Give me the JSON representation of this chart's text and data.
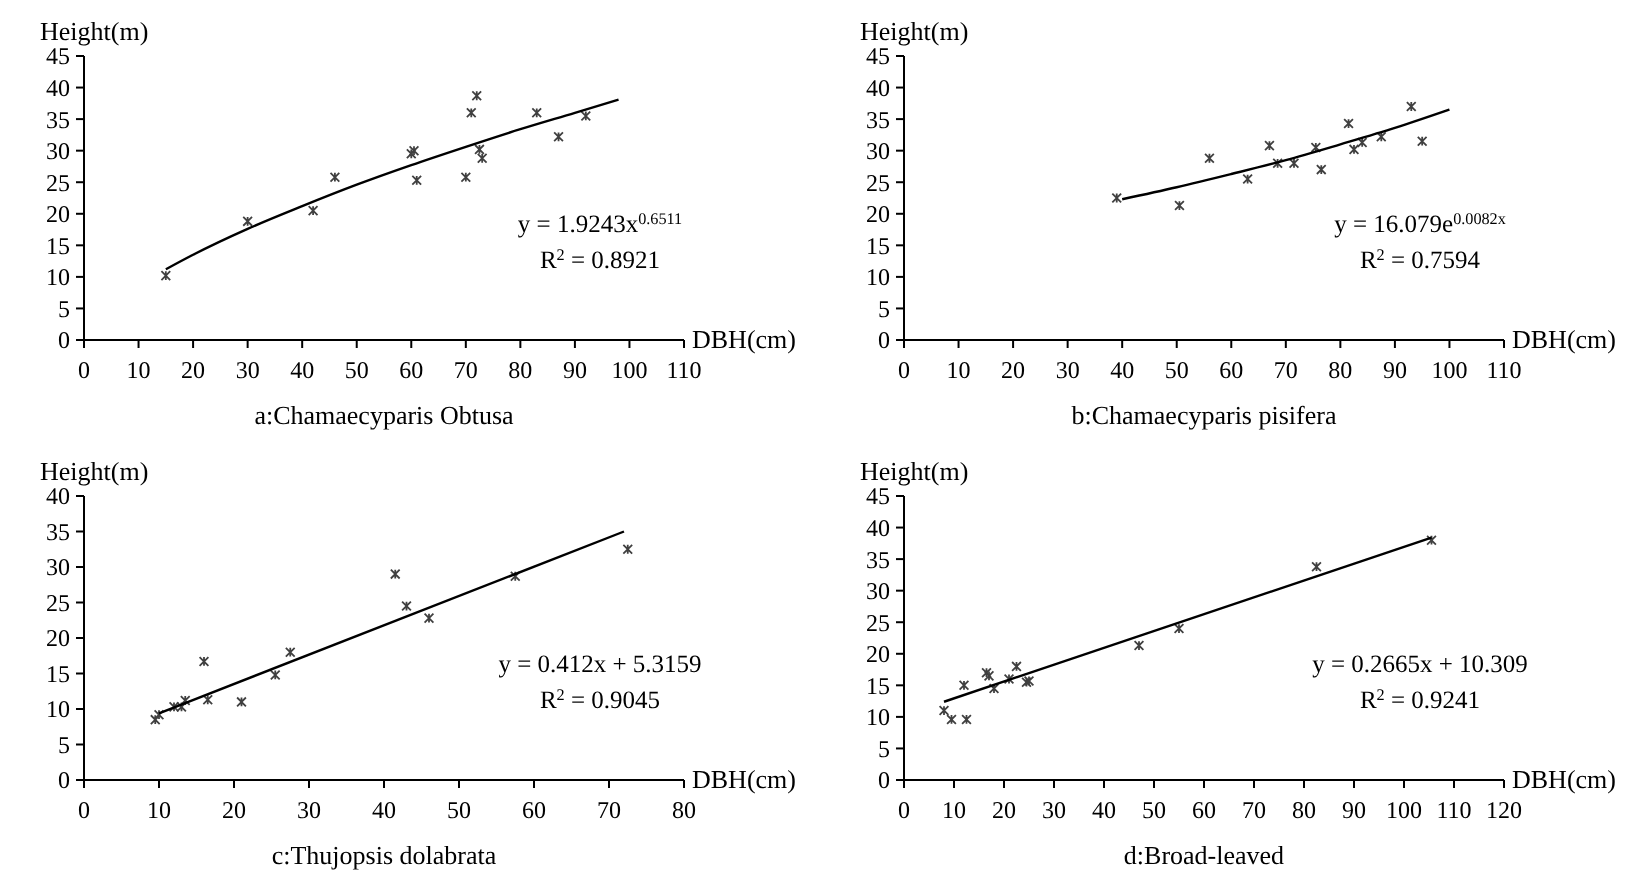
{
  "chart_data": [
    {
      "type": "scatter",
      "title": "a:Chamaecyparis Obtusa",
      "xlabel": "DBH(cm)",
      "ylabel": "Height(m)",
      "xlim": [
        0,
        110
      ],
      "xticks": [
        0,
        10,
        20,
        30,
        40,
        50,
        60,
        70,
        80,
        90,
        100,
        110
      ],
      "ylim": [
        0,
        45
      ],
      "yticks": [
        0,
        5,
        10,
        15,
        20,
        25,
        30,
        35,
        40,
        45
      ],
      "annotations": [
        "y = 1.9243x$^{0.6511}$",
        "R$^{2}$ = 0.8921"
      ],
      "series": [
        {
          "marker": "cross",
          "color": "#404040",
          "x": [
            15,
            30,
            42,
            46,
            60,
            60.5,
            61,
            70,
            71,
            72,
            72.5,
            73,
            83,
            87,
            92
          ],
          "values": [
            10.2,
            18.8,
            20.5,
            25.8,
            29.5,
            30,
            25.3,
            25.8,
            36,
            38.7,
            30.2,
            28.8,
            36,
            32.2,
            35.5
          ]
        },
        {
          "type": "line",
          "marker": "none",
          "color": "#000000",
          "x": [
            15,
            20,
            30,
            40,
            50,
            60,
            70,
            80,
            90,
            98
          ],
          "values": [
            11.2,
            13.5,
            17.6,
            21.2,
            24.6,
            27.7,
            30.6,
            33.4,
            36,
            38.1
          ]
        }
      ]
    },
    {
      "type": "scatter",
      "title": "b:Chamaecyparis pisifera",
      "xlabel": "DBH(cm)",
      "ylabel": "Height(m)",
      "xlim": [
        0,
        110
      ],
      "xticks": [
        0,
        10,
        20,
        30,
        40,
        50,
        60,
        70,
        80,
        90,
        100,
        110
      ],
      "ylim": [
        0,
        45
      ],
      "yticks": [
        0,
        5,
        10,
        15,
        20,
        25,
        30,
        35,
        40,
        45
      ],
      "annotations": [
        "y = 16.079e$^{0.0082x}$",
        "R$^{2}$ = 0.7594"
      ],
      "series": [
        {
          "marker": "cross",
          "color": "#404040",
          "x": [
            39,
            50.5,
            56,
            63,
            67,
            68.5,
            71.5,
            75.5,
            76.5,
            81.5,
            82.5,
            84,
            87.5,
            93,
            95
          ],
          "values": [
            22.5,
            21.3,
            28.8,
            25.5,
            30.8,
            28,
            28,
            30.5,
            27,
            34.3,
            30.2,
            31.3,
            32.2,
            37,
            31.5
          ]
        },
        {
          "type": "line",
          "marker": "none",
          "color": "#000000",
          "x": [
            40,
            50,
            60,
            70,
            80,
            90,
            100
          ],
          "values": [
            22.3,
            24.2,
            26.3,
            28.5,
            31,
            33.6,
            36.5
          ]
        }
      ]
    },
    {
      "type": "scatter",
      "title": "c:Thujopsis dolabrata",
      "xlabel": "DBH(cm)",
      "ylabel": "Height(m)",
      "xlim": [
        0,
        80
      ],
      "xticks": [
        0,
        10,
        20,
        30,
        40,
        50,
        60,
        70,
        80
      ],
      "ylim": [
        0,
        40
      ],
      "yticks": [
        0,
        5,
        10,
        15,
        20,
        25,
        30,
        35,
        40
      ],
      "annotations": [
        "y = 0.412x + 5.3159",
        "R$^{2}$ = 0.9045"
      ],
      "series": [
        {
          "marker": "cross",
          "color": "#404040",
          "x": [
            9.5,
            10,
            12,
            13,
            13.5,
            16,
            16.5,
            21,
            25.5,
            27.5,
            41.5,
            43,
            46,
            57.5,
            72.5
          ],
          "values": [
            8.5,
            9.2,
            10.3,
            10.3,
            11.2,
            16.7,
            11.3,
            11,
            14.8,
            18,
            29,
            24.5,
            22.8,
            28.7,
            32.5
          ]
        },
        {
          "type": "line",
          "marker": "none",
          "color": "#000000",
          "x": [
            10,
            72
          ],
          "values": [
            9.4,
            35
          ]
        }
      ]
    },
    {
      "type": "scatter",
      "title": "d:Broad-leaved",
      "xlabel": "DBH(cm)",
      "ylabel": "Height(m)",
      "xlim": [
        0,
        120
      ],
      "xticks": [
        0,
        10,
        20,
        30,
        40,
        50,
        60,
        70,
        80,
        90,
        100,
        110,
        120
      ],
      "ylim": [
        0,
        45
      ],
      "yticks": [
        0,
        5,
        10,
        15,
        20,
        25,
        30,
        35,
        40,
        45
      ],
      "annotations": [
        "y = 0.2665x + 10.309",
        "R$^{2}$ = 0.9241"
      ],
      "series": [
        {
          "marker": "cross",
          "color": "#404040",
          "x": [
            8,
            9.5,
            12,
            12.5,
            16.5,
            17,
            18,
            21,
            22.5,
            24.5,
            25,
            47,
            55,
            82.5,
            105.5
          ],
          "values": [
            11,
            9.6,
            15,
            9.6,
            17,
            16.5,
            14.5,
            16,
            18,
            15.5,
            15.7,
            21.3,
            24,
            33.8,
            38
          ]
        },
        {
          "type": "line",
          "marker": "none",
          "color": "#000000",
          "x": [
            8,
            105.5
          ],
          "values": [
            12.4,
            38.4
          ]
        }
      ]
    }
  ]
}
